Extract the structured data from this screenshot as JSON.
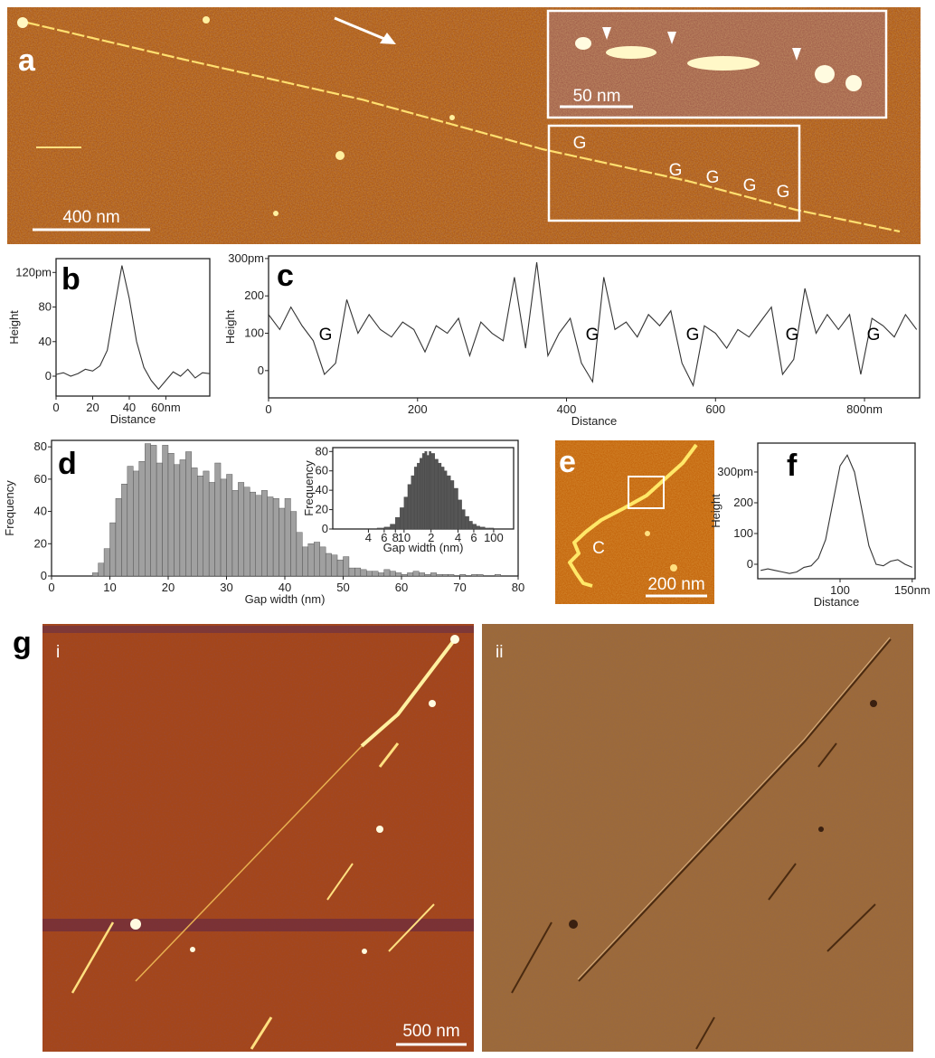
{
  "chart_data": [
    {
      "type": "line",
      "panel": "b",
      "x_label": "Distance",
      "y_label": "Height",
      "color": "#333333",
      "x": [
        0,
        4,
        8,
        12,
        16,
        20,
        24,
        28,
        32,
        36,
        40,
        44,
        48,
        52,
        56,
        60,
        64,
        68,
        72,
        76,
        80,
        84
      ],
      "values": [
        2,
        4,
        0,
        3,
        8,
        6,
        12,
        30,
        80,
        128,
        90,
        40,
        10,
        -5,
        -15,
        -5,
        5,
        0,
        8,
        -2,
        4,
        3
      ],
      "xlim": [
        0,
        84
      ],
      "ylim": [
        -23,
        136
      ],
      "xticks": [
        0,
        20,
        40,
        {
          "value": 60,
          "label": "60nm"
        }
      ],
      "yticks": [
        0,
        40,
        80,
        {
          "value": 120,
          "label": "120pm"
        }
      ]
    },
    {
      "type": "line",
      "panel": "c",
      "x_label": "Distance",
      "y_label": "Height",
      "color": "#333333",
      "annotations": [
        "G",
        "G",
        "G",
        "G",
        "G"
      ],
      "x": [
        0,
        15,
        30,
        45,
        60,
        75,
        90,
        105,
        120,
        135,
        150,
        165,
        180,
        195,
        210,
        225,
        240,
        255,
        270,
        285,
        300,
        315,
        330,
        345,
        360,
        375,
        390,
        405,
        420,
        435,
        450,
        465,
        480,
        495,
        510,
        525,
        540,
        555,
        570,
        585,
        600,
        615,
        630,
        645,
        660,
        675,
        690,
        705,
        720,
        735,
        750,
        765,
        780,
        795,
        810,
        825,
        840,
        855,
        870
      ],
      "values": [
        150,
        110,
        170,
        120,
        80,
        -10,
        20,
        190,
        100,
        150,
        110,
        90,
        130,
        110,
        50,
        120,
        100,
        140,
        40,
        130,
        100,
        80,
        250,
        60,
        290,
        40,
        100,
        140,
        20,
        -30,
        250,
        110,
        130,
        90,
        150,
        120,
        160,
        20,
        -40,
        120,
        100,
        60,
        110,
        90,
        130,
        170,
        -10,
        30,
        220,
        100,
        150,
        110,
        150,
        -10,
        140,
        120,
        90,
        150,
        110
      ],
      "xlim": [
        0,
        874
      ],
      "ylim": [
        -73,
        307
      ],
      "xticks": [
        0,
        200,
        400,
        600,
        {
          "value": 800,
          "label": "800nm"
        }
      ],
      "yticks": [
        0,
        100,
        200,
        {
          "value": 300,
          "label": "300pm"
        }
      ]
    },
    {
      "type": "histogram",
      "panel": "d",
      "x_label": "Gap width (nm)",
      "y_label": "Frequency",
      "color": "#a0a0a0",
      "bins": [
        7,
        8,
        9,
        10,
        11,
        12,
        13,
        14,
        15,
        16,
        17,
        18,
        19,
        20,
        21,
        22,
        23,
        24,
        25,
        26,
        27,
        28,
        29,
        30,
        31,
        32,
        33,
        34,
        35,
        36,
        37,
        38,
        39,
        40,
        41,
        42,
        43,
        44,
        45,
        46,
        47,
        48,
        49,
        50,
        51,
        52,
        53,
        54,
        55,
        56,
        57,
        58,
        59,
        60,
        61,
        62,
        63,
        64,
        65,
        66,
        67,
        68,
        69,
        70,
        71,
        72,
        73,
        74,
        75,
        76,
        77,
        78,
        79,
        80
      ],
      "values": [
        2,
        8,
        17,
        33,
        48,
        57,
        68,
        65,
        71,
        82,
        81,
        70,
        81,
        76,
        69,
        72,
        77,
        67,
        62,
        65,
        58,
        70,
        60,
        63,
        53,
        58,
        55,
        52,
        50,
        53,
        49,
        48,
        42,
        48,
        40,
        27,
        18,
        20,
        21,
        18,
        14,
        13,
        10,
        12,
        5,
        5,
        4,
        3,
        3,
        2,
        4,
        3,
        2,
        1,
        2,
        3,
        2,
        1,
        2,
        1,
        1,
        1,
        0,
        1,
        0,
        1,
        1,
        0,
        0,
        1,
        0,
        0,
        0
      ],
      "xlim": [
        0,
        80
      ],
      "ylim": [
        0,
        84
      ],
      "xticks": [
        0,
        10,
        20,
        30,
        40,
        50,
        60,
        70,
        80
      ],
      "yticks": [
        0,
        20,
        40,
        60,
        80
      ]
    },
    {
      "type": "histogram",
      "x_label": "Gap width (nm)",
      "y_label": "Frequency",
      "color": "#555555",
      "xscale": "log",
      "bins": [
        5,
        6,
        7,
        8,
        9,
        10,
        11,
        12,
        13,
        14,
        15,
        16,
        17,
        18,
        19,
        20,
        22,
        24,
        26,
        28,
        30,
        33,
        36,
        40,
        44,
        48,
        53,
        58,
        64,
        70,
        80,
        90,
        100
      ],
      "values": [
        1,
        2,
        5,
        12,
        22,
        33,
        46,
        55,
        64,
        68,
        73,
        78,
        80,
        76,
        80,
        78,
        72,
        68,
        64,
        60,
        55,
        50,
        42,
        30,
        20,
        13,
        8,
        5,
        3,
        2,
        1,
        1
      ],
      "xlim": [
        1.6,
        167
      ],
      "ylim": [
        0,
        84
      ],
      "xticks": [
        {
          "value": 4,
          "label": "4"
        },
        {
          "value": 6,
          "label": "6"
        },
        {
          "value": 8,
          "label": "8"
        },
        10,
        {
          "value": 20,
          "label": "2"
        },
        {
          "value": 40,
          "label": "4"
        },
        {
          "value": 60,
          "label": "6"
        },
        100
      ],
      "yticks": [
        0,
        20,
        40,
        60,
        80
      ]
    },
    {
      "type": "line",
      "panel": "f",
      "x_label": "Distance",
      "y_label": "Height",
      "color": "#333333",
      "x": [
        45,
        50,
        55,
        60,
        65,
        70,
        75,
        80,
        85,
        90,
        95,
        100,
        105,
        110,
        115,
        120,
        125,
        130,
        135,
        140,
        145,
        150
      ],
      "values": [
        -20,
        -15,
        -20,
        -25,
        -30,
        -25,
        -10,
        -5,
        20,
        80,
        200,
        320,
        355,
        300,
        180,
        60,
        0,
        -5,
        10,
        15,
        0,
        -10
      ],
      "xlim": [
        43,
        152
      ],
      "ylim": [
        -47,
        394
      ],
      "xticks": [
        100,
        {
          "value": 150,
          "label": "150nm"
        }
      ],
      "yticks": [
        0,
        100,
        200,
        {
          "value": 300,
          "label": "300pm"
        }
      ]
    }
  ],
  "panels": {
    "a": {
      "label": "a",
      "scale_bar": "400 nm",
      "inset_scale_bar": "50 nm",
      "markers": [
        "G",
        "G",
        "G",
        "G",
        "G"
      ]
    },
    "e": {
      "label": "e",
      "marker": "C",
      "scale_bar": "200 nm"
    },
    "g": {
      "label": "g",
      "left": "i",
      "right": "ii",
      "scale_bar": "500 nm"
    }
  }
}
